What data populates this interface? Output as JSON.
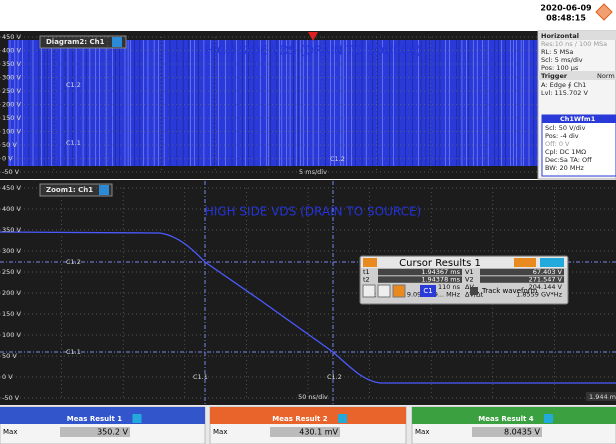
{
  "header": {
    "date": "2020-06-09",
    "time": "08:48:15"
  },
  "diagram": {
    "tab": "Diagram2: Ch1",
    "title": "HIGH SIDE VDS (DRAIN TO SOURCE)",
    "y_labels": [
      "450 V",
      "400 V",
      "350 V",
      "300 V",
      "250 V",
      "200 V",
      "150 V",
      "100 V",
      "50 V",
      "0 V",
      "-50 V"
    ],
    "scale": "5 ms/div",
    "cursor_labels": [
      "C1.2",
      "C1.1",
      "C1.2"
    ]
  },
  "side_panel": {
    "horizontal": {
      "title": "Horizontal",
      "lines": [
        "Res:10 ns / 100 MSa",
        "RL: 5 MSa",
        "Scl: 5 ms/div",
        "Pos: 100 µs"
      ]
    },
    "trigger": {
      "title": "Trigger",
      "mode": "Norm",
      "lines": [
        "A: Edge ∮ Ch1",
        "Lvl: 115.702 V"
      ]
    },
    "channel": {
      "title": "Ch1Wfm1",
      "lines": [
        "Scl: 50 V/div",
        "Pos: -4 div",
        "Off: 0 V",
        "Cpl: DC 1MΩ",
        "Dec:Sa   TA: Off",
        "BW: 20 MHz"
      ]
    }
  },
  "zoom": {
    "tab": "Zoom1: Ch1",
    "title": "HIGH SIDE VDS (DRAIN TO SOURCE)",
    "y_labels": [
      "450 V",
      "400 V",
      "350 V",
      "300 V",
      "250 V",
      "200 V",
      "150 V",
      "100 V",
      "50 V",
      "0 V",
      "-50 V"
    ],
    "scale": "50 ns/div",
    "position": "1.944 ms",
    "cursor_labels": [
      "C1.2",
      "C1.1",
      "C1.1",
      "C1.2"
    ]
  },
  "cursor_results": {
    "title": "Cursor Results 1",
    "rows": [
      [
        "t1",
        "1.94367 ms",
        "V1",
        "67.403 V"
      ],
      [
        "t2",
        "1.94378 ms",
        "V2",
        "271.547 V"
      ],
      [
        "Δt",
        "110 ns",
        "ΔV",
        "204.144 V"
      ],
      [
        "1/Δt",
        "9.090909... MHz",
        "ΔV/Δt",
        "1.8559 GV*Hz"
      ]
    ],
    "channel": "C1",
    "track": "Track waveform"
  },
  "measurements": [
    {
      "title": "Meas Result 1",
      "label": "Max",
      "value": "350.2 V"
    },
    {
      "title": "Meas Result 2",
      "label": "Max",
      "value": "430.1 mV"
    },
    {
      "title": "Meas Result 4",
      "label": "Max",
      "value": "8.0435 V"
    }
  ]
}
